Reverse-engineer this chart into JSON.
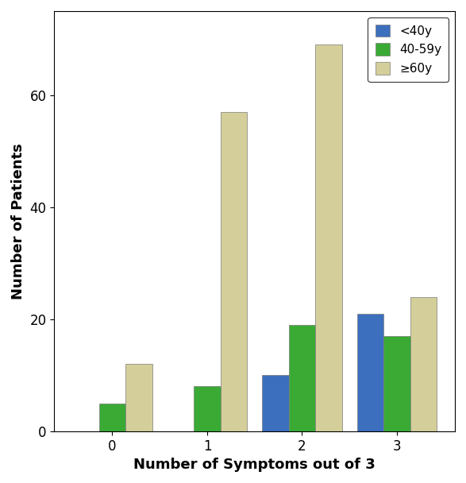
{
  "categories": [
    0,
    1,
    2,
    3
  ],
  "series": {
    "<40y": [
      0,
      0,
      10,
      21
    ],
    "40-59y": [
      5,
      8,
      19,
      17
    ],
    "≥60y": [
      12,
      57,
      69,
      24
    ]
  },
  "colors": {
    "<40y": "#3c6fbe",
    "40-59y": "#3aaa35",
    "≥60y": "#d4cf9a"
  },
  "legend_labels": [
    "<40y",
    "40-59y",
    "≥60y"
  ],
  "xlabel": "Number of Symptoms out of 3",
  "ylabel": "Number of Patients",
  "ylim": [
    0,
    75
  ],
  "yticks": [
    0,
    20,
    40,
    60
  ],
  "bar_width": 0.28,
  "background_color": "#ffffff",
  "edge_color": "#7a7a7a"
}
